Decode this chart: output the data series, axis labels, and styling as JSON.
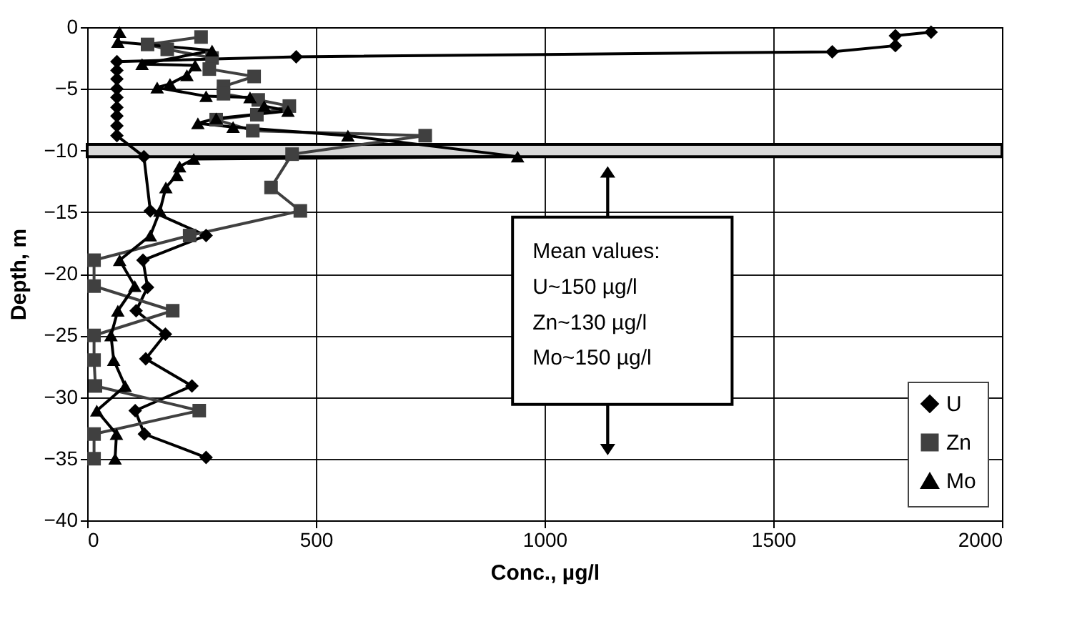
{
  "chart_data": {
    "type": "line",
    "xlabel": "Conc., µg/l",
    "ylabel": "Depth, m",
    "xlim": [
      0,
      2000
    ],
    "xticks": [
      0,
      500,
      1000,
      1500,
      2000
    ],
    "ylim": [
      -40,
      0
    ],
    "yticks": [
      -40,
      -35,
      -30,
      -25,
      -20,
      -15,
      -10,
      -5,
      0
    ],
    "grid": true,
    "legend": "bottom right",
    "line_style": "solid",
    "series": [
      {
        "name": "U",
        "color": "#000000",
        "marker": "diamond",
        "x": [
          1845,
          1767,
          1767,
          1629,
          457,
          65,
          65,
          65,
          65,
          65,
          65,
          65,
          65,
          65,
          124,
          138,
          260,
          122,
          132,
          107,
          171,
          128,
          229,
          105,
          125,
          260
        ],
        "values": [
          -0.4,
          -0.7,
          -1.5,
          -2.0,
          -2.4,
          -2.8,
          -3.5,
          -4.2,
          -5.0,
          -5.7,
          -6.5,
          -7.2,
          -8.0,
          -8.8,
          -10.5,
          -14.9,
          -16.9,
          -18.9,
          -21.1,
          -23.0,
          -24.9,
          -26.9,
          -29.1,
          -31.1,
          -33.0,
          -34.9
        ]
      },
      {
        "name": "Zn",
        "color": "#404040",
        "marker": "square",
        "x": [
          249,
          132,
          175,
          273,
          267,
          365,
          298,
          298,
          374,
          442,
          371,
          282,
          362,
          739,
          448,
          402,
          466,
          224,
          15,
          15,
          187,
          15,
          15,
          18,
          245,
          15,
          15
        ],
        "values": [
          -0.8,
          -1.4,
          -1.8,
          -2.5,
          -3.4,
          -4.0,
          -4.8,
          -5.4,
          -5.9,
          -6.4,
          -7.1,
          -7.5,
          -8.4,
          -8.8,
          -10.3,
          -13.0,
          -14.9,
          -16.9,
          -18.9,
          -21.0,
          -23.0,
          -25.0,
          -27.0,
          -29.1,
          -31.1,
          -33.0,
          -35.0
        ]
      },
      {
        "name": "Mo",
        "color": "#000000",
        "marker": "triangle",
        "x": [
          71,
          67,
          273,
          120,
          236,
          218,
          181,
          153,
          260,
          356,
          387,
          439,
          282,
          242,
          319,
          570,
          941,
          233,
          202,
          196,
          172,
          159,
          138,
          71,
          104,
          67,
          52,
          58,
          83,
          21,
          64,
          61
        ],
        "values": [
          -0.4,
          -1.2,
          -1.9,
          -3.0,
          -3.1,
          -3.9,
          -4.6,
          -4.9,
          -5.6,
          -5.7,
          -6.4,
          -6.8,
          -7.4,
          -7.8,
          -8.1,
          -8.8,
          -10.5,
          -10.7,
          -11.3,
          -12.0,
          -13.0,
          -14.9,
          -16.9,
          -18.9,
          -21.0,
          -23.0,
          -25.0,
          -27.0,
          -29.1,
          -31.1,
          -33.0,
          -35.0
        ]
      }
    ],
    "bands": [
      {
        "axis": "y",
        "from": -10.5,
        "to": -9.5,
        "color": "#d8d8d8"
      }
    ],
    "annotations": [
      "Mean values:",
      "U~150 µg/l",
      "Zn~130 µg/l",
      "Mo~150 µg/l"
    ]
  }
}
